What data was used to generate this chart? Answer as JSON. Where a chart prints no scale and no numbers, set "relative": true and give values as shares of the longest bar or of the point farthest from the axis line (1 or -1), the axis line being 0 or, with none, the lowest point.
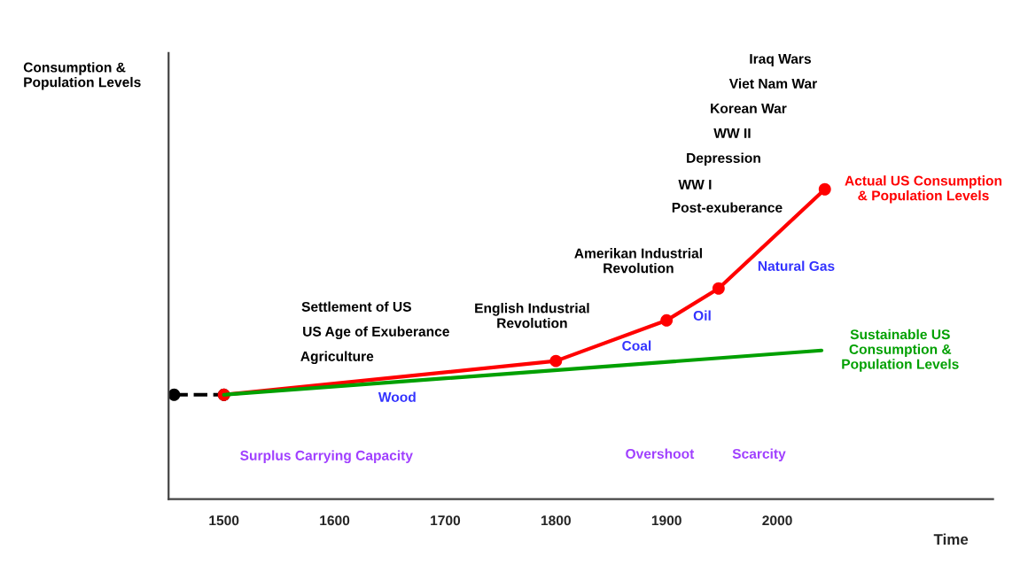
{
  "chart_data": {
    "type": "line",
    "relative": true,
    "xlabel": "Time",
    "xlim": [
      1450,
      2195
    ],
    "xticks": [
      1500,
      1600,
      1700,
      1800,
      1900,
      2000
    ],
    "tick_labels": "x",
    "grid": false,
    "legend": false,
    "series": [
      {
        "x": [
          1455,
          1500
        ],
        "values": [
          0.337,
          0.337
        ],
        "color": "#000000",
        "line_style": "dashed",
        "marker": "circle"
      },
      {
        "name": "Actual US Consumption\n& Population Levels",
        "x": [
          1500,
          1800,
          1900,
          1947,
          2043
        ],
        "values": [
          0.337,
          0.446,
          0.577,
          0.68,
          1
        ],
        "color": "#ff0000",
        "line_style": "solid",
        "marker": "circle"
      },
      {
        "name": "Sustainable US\nConsumption &\nPopulation Levels",
        "x": [
          1500,
          2040
        ],
        "values": [
          0.337,
          0.48
        ],
        "color": "#00a000",
        "line_style": "solid",
        "marker": "none"
      }
    ],
    "annotations": [
      "Consumption &\nPopulation Levels",
      "Settlement of US",
      "US Age of Exuberance",
      "Agriculture",
      "Wood",
      "Surplus Carrying Capacity",
      "English Industrial\nRevolution",
      "Coal",
      "Amerikan Industrial\nRevolution",
      "Oil",
      "Natural Gas",
      "Post-exuberance",
      "WW I",
      "Depression",
      "WW II",
      "Korean War",
      "Viet Nam War",
      "Iraq Wars",
      "Overshoot",
      "Scarcity"
    ]
  }
}
